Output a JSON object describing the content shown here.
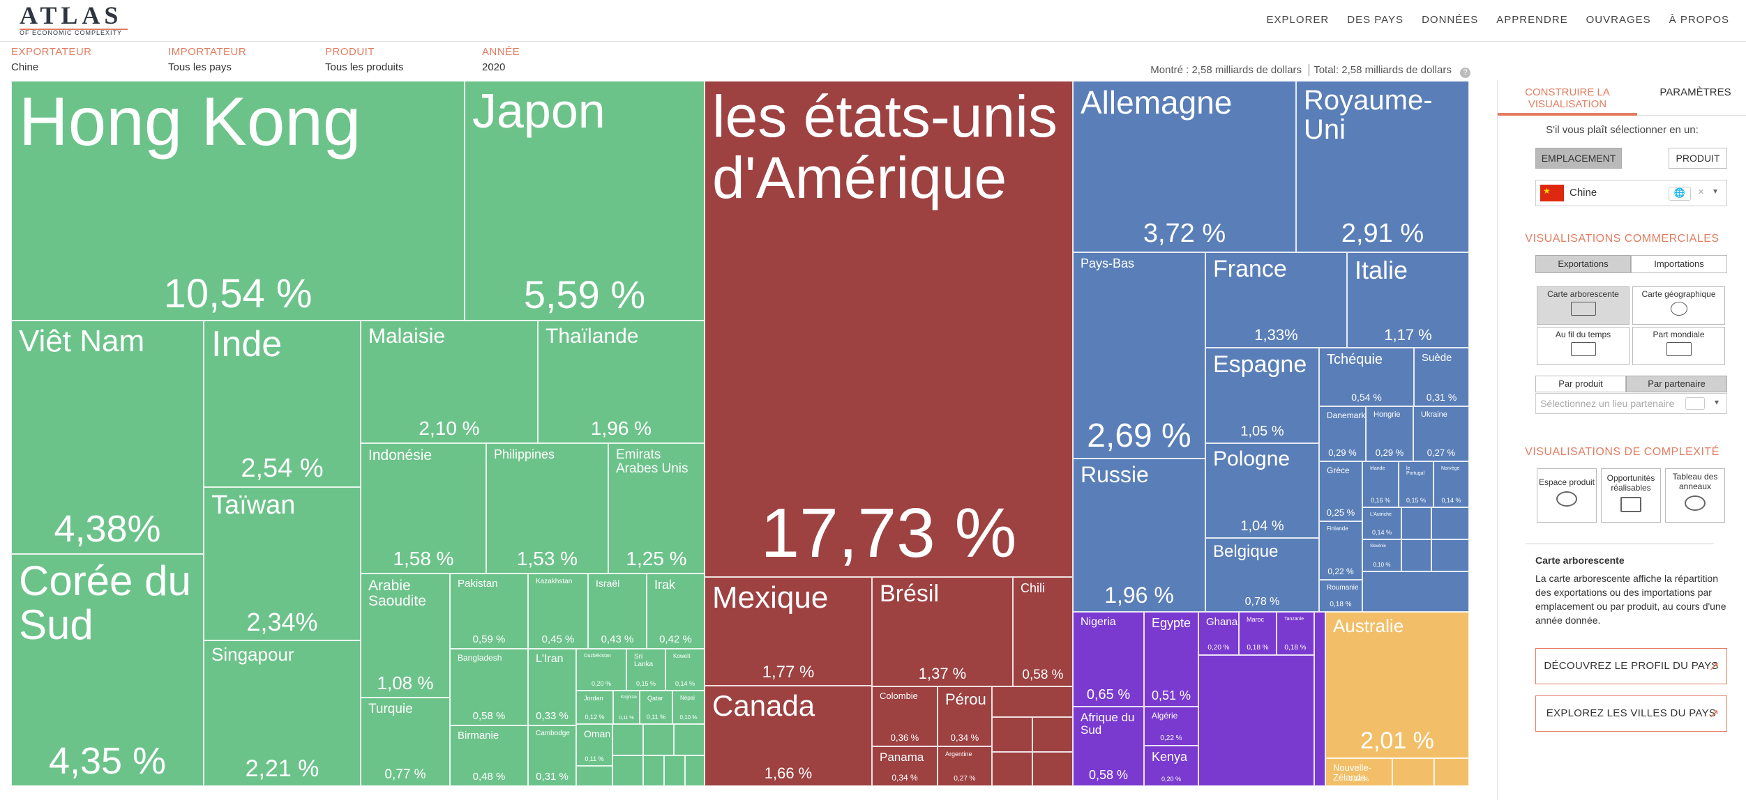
{
  "header": {
    "logo_title": "ATLAS",
    "logo_subtitle": "OF ECONOMIC COMPLEXITY",
    "nav": [
      "EXPLORER",
      "DES PAYS",
      "DONNÉES",
      "APPRENDRE",
      "OUVRAGES",
      "À PROPOS"
    ]
  },
  "filters": [
    {
      "label": "EXPORTATEUR",
      "value": "Chine"
    },
    {
      "label": "IMPORTATEUR",
      "value": "Tous les pays"
    },
    {
      "label": "PRODUIT",
      "value": "Tous les produits"
    },
    {
      "label": "ANNÉE",
      "value": "2020"
    }
  ],
  "totals": {
    "shown_label": "Montré :",
    "shown_value": "2,58 milliards de dollars",
    "total_label": "Total:",
    "total_value": "2,58 milliards de dollars",
    "help": "?"
  },
  "colors": {
    "accent": "#e27d60",
    "asia": "#6cc38a",
    "americas": "#9e4141",
    "europe": "#5a7fb8",
    "africa": "#7a3ad0",
    "oceania": "#f2bf68"
  },
  "chart_data": {
    "type": "treemap",
    "title": "",
    "units": "% of exports",
    "cells": [
      {
        "name": "Hong Kong",
        "pct": "10,54 %",
        "value": 10.54,
        "region": "asia"
      },
      {
        "name": "Japon",
        "pct": "5,59 %",
        "value": 5.59,
        "region": "asia"
      },
      {
        "name": "Viêt Nam",
        "pct": "4,38%",
        "value": 4.38,
        "region": "asia"
      },
      {
        "name": "Corée du Sud",
        "pct": "4,35 %",
        "value": 4.35,
        "region": "asia"
      },
      {
        "name": "Inde",
        "pct": "2,54 %",
        "value": 2.54,
        "region": "asia"
      },
      {
        "name": "Taïwan",
        "pct": "2,34%",
        "value": 2.34,
        "region": "asia"
      },
      {
        "name": "Singapour",
        "pct": "2,21 %",
        "value": 2.21,
        "region": "asia"
      },
      {
        "name": "Malaisie",
        "pct": "2,10 %",
        "value": 2.1,
        "region": "asia"
      },
      {
        "name": "Thaïlande",
        "pct": "1,96 %",
        "value": 1.96,
        "region": "asia"
      },
      {
        "name": "Indonésie",
        "pct": "1,58 %",
        "value": 1.58,
        "region": "asia"
      },
      {
        "name": "Philippines",
        "pct": "1,53 %",
        "value": 1.53,
        "region": "asia"
      },
      {
        "name": "Emirats Arabes Unis",
        "pct": "1,25 %",
        "value": 1.25,
        "region": "asia"
      },
      {
        "name": "Arabie Saoudite",
        "pct": "1,08 %",
        "value": 1.08,
        "region": "asia"
      },
      {
        "name": "Turquie",
        "pct": "0,77 %",
        "value": 0.77,
        "region": "asia"
      },
      {
        "name": "Pakistan",
        "pct": "0,59 %",
        "value": 0.59,
        "region": "asia"
      },
      {
        "name": "Kazakhstan",
        "pct": "0,45 %",
        "value": 0.45,
        "region": "asia"
      },
      {
        "name": "Israël",
        "pct": "0,43 %",
        "value": 0.43,
        "region": "asia"
      },
      {
        "name": "Irak",
        "pct": "0,42 %",
        "value": 0.42,
        "region": "asia"
      },
      {
        "name": "Bangladesh",
        "pct": "0,58 %",
        "value": 0.58,
        "region": "asia"
      },
      {
        "name": "L'Iran",
        "pct": "0,33 %",
        "value": 0.33,
        "region": "asia"
      },
      {
        "name": "Birmanie",
        "pct": "0,48 %",
        "value": 0.48,
        "region": "asia"
      },
      {
        "name": "Cambodge",
        "pct": "0,31 %",
        "value": 0.31,
        "region": "asia"
      },
      {
        "name": "Ouzbékistan",
        "pct": "0,20 %",
        "value": 0.2,
        "region": "asia"
      },
      {
        "name": "Sri Lanka",
        "pct": "0,15 %",
        "value": 0.15,
        "region": "asia"
      },
      {
        "name": "Koweït",
        "pct": "0,14 %",
        "value": 0.14,
        "region": "asia"
      },
      {
        "name": "Jordan",
        "pct": "0,12 %",
        "value": 0.12,
        "region": "asia"
      },
      {
        "name": "Kirghizie",
        "pct": "0,11 %",
        "value": 0.11,
        "region": "asia"
      },
      {
        "name": "Qatar",
        "pct": "0,11 %",
        "value": 0.11,
        "region": "asia"
      },
      {
        "name": "Népal",
        "pct": "0,10 %",
        "value": 0.1,
        "region": "asia"
      },
      {
        "name": "Oman",
        "pct": "0,11 %",
        "value": 0.11,
        "region": "asia"
      },
      {
        "name": "les états-unis d'Amérique",
        "pct": "17,73 %",
        "value": 17.73,
        "region": "americas"
      },
      {
        "name": "Mexique",
        "pct": "1,77 %",
        "value": 1.77,
        "region": "americas"
      },
      {
        "name": "Canada",
        "pct": "1,66 %",
        "value": 1.66,
        "region": "americas"
      },
      {
        "name": "Brésil",
        "pct": "1,37 %",
        "value": 1.37,
        "region": "americas"
      },
      {
        "name": "Chili",
        "pct": "0,58 %",
        "value": 0.58,
        "region": "americas"
      },
      {
        "name": "Colombie",
        "pct": "0,36 %",
        "value": 0.36,
        "region": "americas"
      },
      {
        "name": "Pérou",
        "pct": "0,34 %",
        "value": 0.34,
        "region": "americas"
      },
      {
        "name": "Panama",
        "pct": "0,34 %",
        "value": 0.34,
        "region": "americas"
      },
      {
        "name": "Argentine",
        "pct": "0,27 %",
        "value": 0.27,
        "region": "americas"
      },
      {
        "name": "Allemagne",
        "pct": "3,72 %",
        "value": 3.72,
        "region": "europe"
      },
      {
        "name": "Royaume-Uni",
        "pct": "2,91 %",
        "value": 2.91,
        "region": "europe"
      },
      {
        "name": "Pays-Bas",
        "pct": "2,69 %",
        "value": 2.69,
        "region": "europe"
      },
      {
        "name": "France",
        "pct": "1,33%",
        "value": 1.33,
        "region": "europe"
      },
      {
        "name": "Italie",
        "pct": "1,17 %",
        "value": 1.17,
        "region": "europe"
      },
      {
        "name": "Espagne",
        "pct": "1,05 %",
        "value": 1.05,
        "region": "europe"
      },
      {
        "name": "Russie",
        "pct": "1,96 %",
        "value": 1.96,
        "region": "europe"
      },
      {
        "name": "Pologne",
        "pct": "1,04 %",
        "value": 1.04,
        "region": "europe"
      },
      {
        "name": "Belgique",
        "pct": "0,78 %",
        "value": 0.78,
        "region": "europe"
      },
      {
        "name": "Tchéquie",
        "pct": "0,54 %",
        "value": 0.54,
        "region": "europe"
      },
      {
        "name": "Suède",
        "pct": "0,31 %",
        "value": 0.31,
        "region": "europe"
      },
      {
        "name": "Danemark",
        "pct": "0,29 %",
        "value": 0.29,
        "region": "europe"
      },
      {
        "name": "Hongrie",
        "pct": "0,29 %",
        "value": 0.29,
        "region": "europe"
      },
      {
        "name": "Ukraine",
        "pct": "0,27 %",
        "value": 0.27,
        "region": "europe"
      },
      {
        "name": "Grèce",
        "pct": "0,25 %",
        "value": 0.25,
        "region": "europe"
      },
      {
        "name": "Irlande",
        "pct": "0,16 %",
        "value": 0.16,
        "region": "europe"
      },
      {
        "name": "le Portugal",
        "pct": "0,15 %",
        "value": 0.15,
        "region": "europe"
      },
      {
        "name": "Norvège",
        "pct": "0,14 %",
        "value": 0.14,
        "region": "europe"
      },
      {
        "name": "L'Autriche",
        "pct": "0,14 %",
        "value": 0.14,
        "region": "europe"
      },
      {
        "name": "Slovénie",
        "pct": "0,10 %",
        "value": 0.1,
        "region": "europe"
      },
      {
        "name": "Finlande",
        "pct": "0,22 %",
        "value": 0.22,
        "region": "europe"
      },
      {
        "name": "Roumanie",
        "pct": "0,18 %",
        "value": 0.18,
        "region": "europe"
      },
      {
        "name": "Nigeria",
        "pct": "0,65 %",
        "value": 0.65,
        "region": "africa"
      },
      {
        "name": "Egypte",
        "pct": "0,51 %",
        "value": 0.51,
        "region": "africa"
      },
      {
        "name": "Afrique du Sud",
        "pct": "0,58 %",
        "value": 0.58,
        "region": "africa"
      },
      {
        "name": "Algérie",
        "pct": "0,22 %",
        "value": 0.22,
        "region": "africa"
      },
      {
        "name": "Kenya",
        "pct": "0,20 %",
        "value": 0.2,
        "region": "africa"
      },
      {
        "name": "Ghana",
        "pct": "0,20 %",
        "value": 0.2,
        "region": "africa"
      },
      {
        "name": "Maroc",
        "pct": "0,18 %",
        "value": 0.18,
        "region": "africa"
      },
      {
        "name": "Tanzanie",
        "pct": "0,18 %",
        "value": 0.18,
        "region": "africa"
      },
      {
        "name": "Australie",
        "pct": "2,01 %",
        "value": 2.01,
        "region": "oceania"
      },
      {
        "name": "Nouvelle-Zélande",
        "pct": "0,24 %",
        "value": 0.24,
        "region": "oceania"
      }
    ]
  },
  "panel": {
    "tab_build": "CONSTRUIRE LA VISUALISATION",
    "tab_params": "PARAMÈTRES",
    "select_prompt": "S'il vous plaît sélectionner en un:",
    "btn_location": "EMPLACEMENT",
    "btn_product": "PRODUIT",
    "country_value": "Chine",
    "trade_title": "VISUALISATIONS COMMERCIALES",
    "btn_exports": "Exportations",
    "btn_imports": "Importations",
    "card_treemap": "Carte arborescente",
    "card_geo": "Carte géographique",
    "card_time": "Au fil du temps",
    "card_share": "Part mondiale",
    "btn_by_product": "Par produit",
    "btn_by_partner": "Par partenaire",
    "partner_placeholder": "Sélectionnez un lieu partenaire",
    "complexity_title": "VISUALISATIONS DE COMPLEXITÉ",
    "card_space": "Espace produit",
    "card_opps": "Opportunités réalisables",
    "card_rings": "Tableau des anneaux",
    "desc_title": "Carte arborescente",
    "desc_text": "La carte arborescente affiche la répartition des exportations ou des importations par emplacement ou par produit, au cours d'une année donnée.",
    "cta_profile": "DÉCOUVREZ LE PROFIL DU PAYS",
    "cta_cities": "EXPLOREZ LES VILLES DU PAYS"
  }
}
